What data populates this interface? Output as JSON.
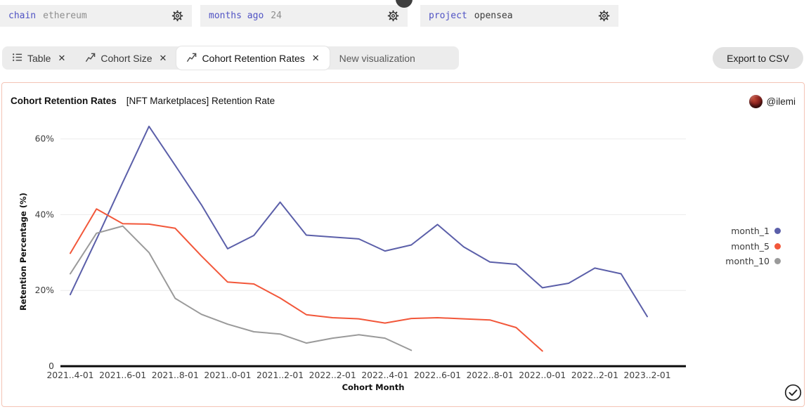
{
  "params": {
    "items": [
      {
        "label": "chain",
        "value": "ethereum"
      },
      {
        "label": "months ago",
        "value": "24"
      },
      {
        "label": "project",
        "value": "opensea"
      }
    ]
  },
  "tabs": {
    "close_icon": "✕",
    "items": [
      {
        "label": "Table",
        "active": false
      },
      {
        "label": "Cohort Size",
        "active": false
      },
      {
        "label": "Cohort Retention Rates",
        "active": true
      },
      {
        "label": "New visualization",
        "active": false
      }
    ]
  },
  "toolbar": {
    "export_label": "Export to CSV"
  },
  "card": {
    "title": "Cohort Retention Rates",
    "subtitle": "[NFT Marketplaces] Retention Rate",
    "author": "@ilemi"
  },
  "chart_data": {
    "type": "line",
    "title": "Cohort Retention Rates",
    "xlabel": "Cohort Month",
    "ylabel": "Retention Percentage (%)",
    "x_start_month": "2021-04-01",
    "x_step_months": 1,
    "x_tick_labels": [
      "2021..4-01",
      "2021..6-01",
      "2021..8-01",
      "2021..0-01",
      "2021..2-01",
      "2022..2-01",
      "2022..4-01",
      "2022..6-01",
      "2022..8-01",
      "2022..0-01",
      "2022..2-01",
      "2023..2-01"
    ],
    "y_ticks": [
      {
        "label": "0",
        "value": 0
      },
      {
        "label": "20%",
        "value": 20
      },
      {
        "label": "40%",
        "value": 40
      },
      {
        "label": "60%",
        "value": 60
      }
    ],
    "ylim": [
      0,
      65
    ],
    "grid": true,
    "legend_position": "right",
    "series": [
      {
        "name": "month_1",
        "color": "#5b5fa9",
        "values": [
          18.9,
          33.5,
          48.5,
          63.3,
          53.0,
          42.6,
          31.0,
          34.5,
          43.3,
          34.6,
          34.1,
          33.6,
          30.4,
          32.0,
          37.4,
          31.5,
          27.5,
          26.9,
          20.7,
          21.9,
          25.9,
          24.4,
          13.1
        ]
      },
      {
        "name": "month_5",
        "color": "#f2573a",
        "values": [
          29.8,
          41.5,
          37.6,
          37.5,
          36.4,
          29.1,
          22.2,
          21.7,
          18.0,
          13.6,
          12.8,
          12.5,
          11.4,
          12.6,
          12.8,
          12.5,
          12.2,
          10.2,
          4.0
        ]
      },
      {
        "name": "month_10",
        "color": "#9a9a9a",
        "values": [
          24.4,
          35.1,
          37.0,
          30.0,
          17.9,
          13.7,
          11.1,
          9.1,
          8.5,
          6.1,
          7.4,
          8.3,
          7.4,
          4.2
        ]
      }
    ]
  }
}
